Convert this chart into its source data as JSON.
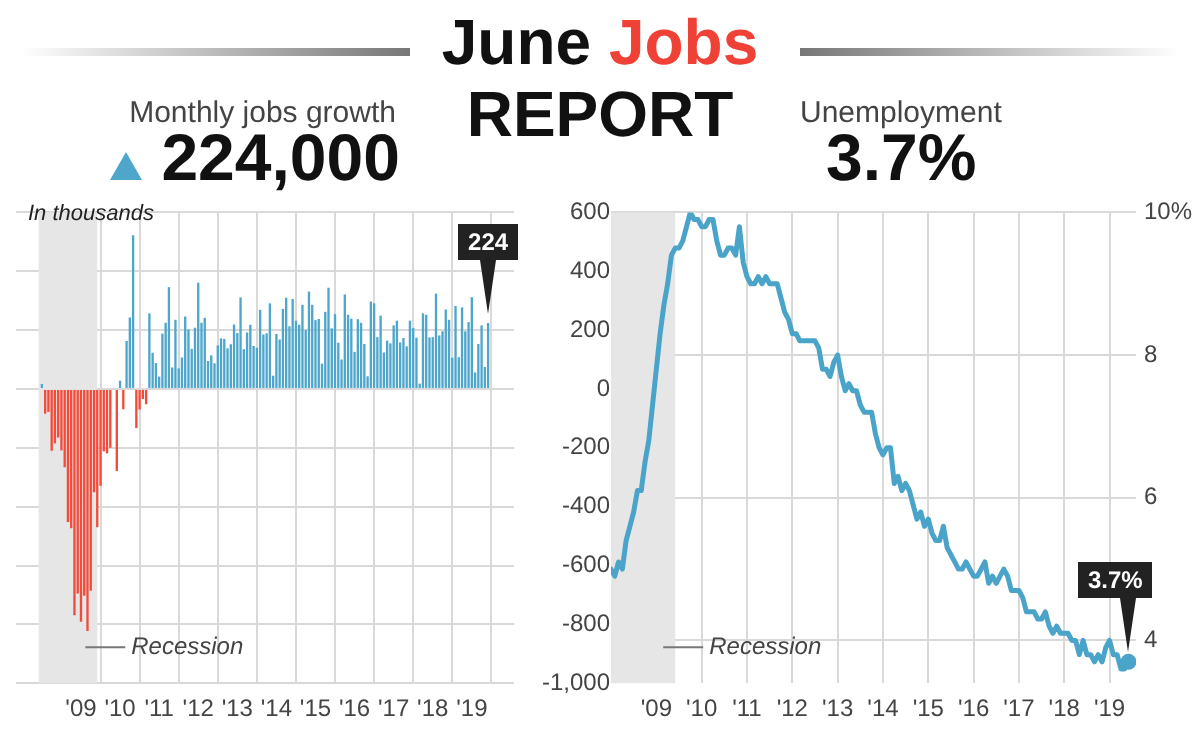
{
  "chart_data": [
    {
      "type": "bar",
      "title": "Monthly jobs growth",
      "subtitle": "224,000",
      "annotations": [
        "June Jobs REPORT",
        "In thousands",
        {
          "text": "224",
          "x": "2019-06",
          "y": 224
        }
      ],
      "x": [
        "2008-01",
        "2008-02",
        "2008-03",
        "2008-04",
        "2008-05",
        "2008-06",
        "2008-07",
        "2008-08",
        "2008-09",
        "2008-10",
        "2008-11",
        "2008-12",
        "2009-01",
        "2009-02",
        "2009-03",
        "2009-04",
        "2009-05",
        "2009-06",
        "2009-07",
        "2009-08",
        "2009-09",
        "2009-10",
        "2009-11",
        "2009-12",
        "2010-01",
        "2010-02",
        "2010-03",
        "2010-04",
        "2010-05",
        "2010-06",
        "2010-07",
        "2010-08",
        "2010-09",
        "2010-10",
        "2010-11",
        "2010-12",
        "2011-01",
        "2011-02",
        "2011-03",
        "2011-04",
        "2011-05",
        "2011-06",
        "2011-07",
        "2011-08",
        "2011-09",
        "2011-10",
        "2011-11",
        "2011-12",
        "2012-01",
        "2012-02",
        "2012-03",
        "2012-04",
        "2012-05",
        "2012-06",
        "2012-07",
        "2012-08",
        "2012-09",
        "2012-10",
        "2012-11",
        "2012-12",
        "2013-01",
        "2013-02",
        "2013-03",
        "2013-04",
        "2013-05",
        "2013-06",
        "2013-07",
        "2013-08",
        "2013-09",
        "2013-10",
        "2013-11",
        "2013-12",
        "2014-01",
        "2014-02",
        "2014-03",
        "2014-04",
        "2014-05",
        "2014-06",
        "2014-07",
        "2014-08",
        "2014-09",
        "2014-10",
        "2014-11",
        "2014-12",
        "2015-01",
        "2015-02",
        "2015-03",
        "2015-04",
        "2015-05",
        "2015-06",
        "2015-07",
        "2015-08",
        "2015-09",
        "2015-10",
        "2015-11",
        "2015-12",
        "2016-01",
        "2016-02",
        "2016-03",
        "2016-04",
        "2016-05",
        "2016-06",
        "2016-07",
        "2016-08",
        "2016-09",
        "2016-10",
        "2016-11",
        "2016-12",
        "2017-01",
        "2017-02",
        "2017-03",
        "2017-04",
        "2017-05",
        "2017-06",
        "2017-07",
        "2017-08",
        "2017-09",
        "2017-10",
        "2017-11",
        "2017-12",
        "2018-01",
        "2018-02",
        "2018-03",
        "2018-04",
        "2018-05",
        "2018-06",
        "2018-07",
        "2018-08",
        "2018-09",
        "2018-10",
        "2018-11",
        "2018-12",
        "2019-01",
        "2019-02",
        "2019-03",
        "2019-04",
        "2019-05",
        "2019-06"
      ],
      "series": [
        {
          "colors": [
            "#4fa6cb",
            "#f24b3b",
            "#f24b3b",
            "#f24b3b",
            "#f24b3b",
            "#f24b3b",
            "#f24b3b",
            "#f24b3b",
            "#f24b3b",
            "#f24b3b",
            "#f24b3b",
            "#f24b3b",
            "#f24b3b",
            "#f24b3b",
            "#f24b3b",
            "#f24b3b",
            "#f24b3b",
            "#f24b3b",
            "#f24b3b",
            "#f24b3b",
            "#f24b3b",
            "#f24b3b",
            "#f24b3b",
            "#f24b3b",
            "#4fa6cb",
            "#f24b3b",
            "#4fa6cb",
            "#4fa6cb",
            "#4fa6cb",
            "#f24b3b",
            "#f24b3b",
            "#f24b3b",
            "#f24b3b",
            "#4fa6cb",
            "#4fa6cb",
            "#4fa6cb",
            "#4fa6cb",
            "#4fa6cb",
            "#4fa6cb",
            "#4fa6cb",
            "#4fa6cb",
            "#4fa6cb",
            "#4fa6cb",
            "#4fa6cb",
            "#4fa6cb",
            "#4fa6cb",
            "#4fa6cb",
            "#4fa6cb",
            "#4fa6cb",
            "#4fa6cb",
            "#4fa6cb",
            "#4fa6cb",
            "#4fa6cb",
            "#4fa6cb",
            "#4fa6cb",
            "#4fa6cb",
            "#4fa6cb",
            "#4fa6cb",
            "#4fa6cb",
            "#4fa6cb",
            "#4fa6cb",
            "#4fa6cb",
            "#4fa6cb",
            "#4fa6cb",
            "#4fa6cb",
            "#4fa6cb",
            "#4fa6cb",
            "#4fa6cb",
            "#4fa6cb",
            "#4fa6cb",
            "#4fa6cb",
            "#4fa6cb",
            "#4fa6cb",
            "#4fa6cb",
            "#4fa6cb",
            "#4fa6cb",
            "#4fa6cb",
            "#4fa6cb",
            "#4fa6cb",
            "#4fa6cb",
            "#4fa6cb",
            "#4fa6cb",
            "#4fa6cb",
            "#4fa6cb",
            "#4fa6cb",
            "#4fa6cb",
            "#4fa6cb",
            "#4fa6cb",
            "#4fa6cb",
            "#4fa6cb",
            "#4fa6cb",
            "#4fa6cb",
            "#4fa6cb",
            "#4fa6cb",
            "#4fa6cb",
            "#4fa6cb",
            "#4fa6cb",
            "#4fa6cb",
            "#4fa6cb",
            "#4fa6cb",
            "#4fa6cb",
            "#4fa6cb",
            "#4fa6cb",
            "#4fa6cb",
            "#4fa6cb",
            "#4fa6cb",
            "#4fa6cb",
            "#4fa6cb",
            "#4fa6cb",
            "#4fa6cb",
            "#4fa6cb",
            "#4fa6cb",
            "#4fa6cb",
            "#4fa6cb",
            "#4fa6cb",
            "#4fa6cb",
            "#4fa6cb",
            "#4fa6cb",
            "#4fa6cb",
            "#4fa6cb",
            "#4fa6cb",
            "#4fa6cb",
            "#4fa6cb",
            "#4fa6cb",
            "#4fa6cb",
            "#4fa6cb",
            "#4fa6cb",
            "#4fa6cb",
            "#4fa6cb",
            "#4fa6cb",
            "#4fa6cb",
            "#4fa6cb",
            "#4fa6cb",
            "#4fa6cb",
            "#4fa6cb",
            "#4fa6cb",
            "#4fa6cb",
            "#4fa6cb"
          ],
          "values": [
            17,
            -84,
            -78,
            -210,
            -185,
            -165,
            -209,
            -266,
            -452,
            -473,
            -769,
            -695,
            -791,
            -703,
            -823,
            -686,
            -351,
            -470,
            -329,
            -212,
            -219,
            -200,
            null,
            -279,
            28,
            -69,
            163,
            243,
            522,
            -133,
            -70,
            -34,
            -52,
            257,
            123,
            88,
            42,
            188,
            225,
            346,
            73,
            235,
            70,
            107,
            246,
            202,
            136,
            208,
            361,
            225,
            242,
            95,
            114,
            87,
            148,
            172,
            170,
            138,
            152,
            219,
            190,
            311,
            135,
            192,
            218,
            146,
            140,
            269,
            185,
            189,
            291,
            45,
            187,
            168,
            272,
            310,
            213,
            306,
            232,
            218,
            286,
            200,
            331,
            286,
            234,
            238,
            86,
            262,
            344,
            206,
            254,
            157,
            100,
            321,
            252,
            239,
            126,
            237,
            225,
            153,
            43,
            297,
            291,
            176,
            249,
            124,
            164,
            155,
            216,
            232,
            158,
            173,
            145,
            232,
            207,
            174,
            18,
            257,
            252,
            175,
            176,
            324,
            182,
            196,
            270,
            235,
            106,
            282,
            108,
            277,
            196,
            227,
            312,
            56,
            153,
            216,
            75,
            224
          ]
        }
      ],
      "xlim": [
        "2007-12",
        "2019-07"
      ],
      "xticks": [
        {
          "value": "2009-01",
          "label": "'09"
        },
        {
          "value": "2010-01",
          "label": "'10"
        },
        {
          "value": "2011-01",
          "label": "'11"
        },
        {
          "value": "2012-01",
          "label": "'12"
        },
        {
          "value": "2013-01",
          "label": "'13"
        },
        {
          "value": "2014-01",
          "label": "'14"
        },
        {
          "value": "2015-01",
          "label": "'15"
        },
        {
          "value": "2016-01",
          "label": "'16"
        },
        {
          "value": "2017-01",
          "label": "'17"
        },
        {
          "value": "2018-01",
          "label": "'18"
        },
        {
          "value": "2019-01",
          "label": "'19"
        }
      ],
      "ylim": [
        -1000,
        600
      ],
      "yticks": [
        {
          "value": -1000,
          "label": "-1,000"
        },
        -800,
        -600,
        -400,
        -200,
        0,
        200,
        400,
        600
      ],
      "bands": [
        {
          "axis": "x",
          "from": "2007-12",
          "to": "2009-06",
          "label": "Recession",
          "color": "#e6e6e6"
        }
      ],
      "grid": true,
      "legend": false
    },
    {
      "type": "line",
      "title": "Unemployment",
      "subtitle": "3.7%",
      "annotations": [
        {
          "text": "3.7%",
          "x": "2019-06",
          "y": 3.7
        }
      ],
      "x": [
        "2008-01",
        "2008-02",
        "2008-03",
        "2008-04",
        "2008-05",
        "2008-06",
        "2008-07",
        "2008-08",
        "2008-09",
        "2008-10",
        "2008-11",
        "2008-12",
        "2009-01",
        "2009-02",
        "2009-03",
        "2009-04",
        "2009-05",
        "2009-06",
        "2009-07",
        "2009-08",
        "2009-09",
        "2009-10",
        "2009-11",
        "2009-12",
        "2010-01",
        "2010-02",
        "2010-03",
        "2010-04",
        "2010-05",
        "2010-06",
        "2010-07",
        "2010-08",
        "2010-09",
        "2010-10",
        "2010-11",
        "2010-12",
        "2011-01",
        "2011-02",
        "2011-03",
        "2011-04",
        "2011-05",
        "2011-06",
        "2011-07",
        "2011-08",
        "2011-09",
        "2011-10",
        "2011-11",
        "2011-12",
        "2012-01",
        "2012-02",
        "2012-03",
        "2012-04",
        "2012-05",
        "2012-06",
        "2012-07",
        "2012-08",
        "2012-09",
        "2012-10",
        "2012-11",
        "2012-12",
        "2013-01",
        "2013-02",
        "2013-03",
        "2013-04",
        "2013-05",
        "2013-06",
        "2013-07",
        "2013-08",
        "2013-09",
        "2013-10",
        "2013-11",
        "2013-12",
        "2014-01",
        "2014-02",
        "2014-03",
        "2014-04",
        "2014-05",
        "2014-06",
        "2014-07",
        "2014-08",
        "2014-09",
        "2014-10",
        "2014-11",
        "2014-12",
        "2015-01",
        "2015-02",
        "2015-03",
        "2015-04",
        "2015-05",
        "2015-06",
        "2015-07",
        "2015-08",
        "2015-09",
        "2015-10",
        "2015-11",
        "2015-12",
        "2016-01",
        "2016-02",
        "2016-03",
        "2016-04",
        "2016-05",
        "2016-06",
        "2016-07",
        "2016-08",
        "2016-09",
        "2016-10",
        "2016-11",
        "2016-12",
        "2017-01",
        "2017-02",
        "2017-03",
        "2017-04",
        "2017-05",
        "2017-06",
        "2017-07",
        "2017-08",
        "2017-09",
        "2017-10",
        "2017-11",
        "2017-12",
        "2018-01",
        "2018-02",
        "2018-03",
        "2018-04",
        "2018-05",
        "2018-06",
        "2018-07",
        "2018-08",
        "2018-09",
        "2018-10",
        "2018-11",
        "2018-12",
        "2019-01",
        "2019-02",
        "2019-03",
        "2019-04",
        "2019-05",
        "2019-06"
      ],
      "series": [
        {
          "color": "#4aa3c8",
          "values": [
            5.0,
            4.9,
            5.1,
            5.0,
            5.4,
            5.6,
            5.8,
            6.1,
            6.1,
            6.5,
            6.8,
            7.3,
            7.8,
            8.3,
            8.7,
            9.0,
            9.4,
            9.5,
            9.5,
            9.6,
            9.8,
            10.0,
            9.9,
            9.9,
            9.8,
            9.8,
            9.9,
            9.9,
            9.6,
            9.4,
            9.4,
            9.5,
            9.5,
            9.4,
            9.8,
            9.3,
            9.1,
            9.0,
            9.0,
            9.1,
            9.0,
            9.1,
            9.0,
            9.0,
            9.0,
            8.8,
            8.6,
            8.5,
            8.3,
            8.3,
            8.2,
            8.2,
            8.2,
            8.2,
            8.2,
            8.1,
            7.8,
            7.8,
            7.7,
            7.9,
            8.0,
            7.7,
            7.5,
            7.6,
            7.5,
            7.5,
            7.3,
            7.2,
            7.2,
            7.2,
            6.9,
            6.7,
            6.6,
            6.7,
            6.7,
            6.2,
            6.3,
            6.1,
            6.2,
            6.1,
            5.9,
            5.7,
            5.8,
            5.6,
            5.7,
            5.5,
            5.4,
            5.4,
            5.6,
            5.3,
            5.2,
            5.1,
            5.0,
            5.0,
            5.1,
            5.0,
            4.9,
            4.9,
            5.0,
            5.1,
            4.8,
            4.9,
            4.8,
            4.9,
            5.0,
            4.9,
            4.7,
            4.7,
            4.7,
            4.6,
            4.4,
            4.4,
            4.4,
            4.3,
            4.3,
            4.4,
            4.2,
            4.1,
            4.2,
            4.1,
            4.1,
            4.1,
            4.0,
            4.0,
            3.8,
            4.0,
            3.8,
            3.8,
            3.7,
            3.8,
            3.7,
            3.9,
            4.0,
            3.8,
            3.8,
            3.6,
            3.6,
            3.7
          ]
        },
        {
          "type": "scatter",
          "color": "#4aa3c8",
          "marker": "circle",
          "x": [
            "2019-06"
          ],
          "values": [
            3.7
          ]
        }
      ],
      "xlim": [
        "2008-01",
        "2019-08"
      ],
      "xticks": [
        {
          "value": "2009-01",
          "label": "'09"
        },
        {
          "value": "2010-01",
          "label": "'10"
        },
        {
          "value": "2011-01",
          "label": "'11"
        },
        {
          "value": "2012-01",
          "label": "'12"
        },
        {
          "value": "2013-01",
          "label": "'13"
        },
        {
          "value": "2014-01",
          "label": "'14"
        },
        {
          "value": "2015-01",
          "label": "'15"
        },
        {
          "value": "2016-01",
          "label": "'16"
        },
        {
          "value": "2017-01",
          "label": "'17"
        },
        {
          "value": "2018-01",
          "label": "'18"
        },
        {
          "value": "2019-01",
          "label": "'19"
        }
      ],
      "ylim": [
        3.4,
        10
      ],
      "yticks": [
        4,
        6,
        8,
        {
          "value": 10,
          "label": "10%"
        }
      ],
      "bands": [
        {
          "axis": "x",
          "from": "2008-01",
          "to": "2009-06",
          "label": "Recession",
          "color": "#e6e6e6"
        }
      ],
      "grid": true,
      "legend": false,
      "marker": "none"
    }
  ]
}
